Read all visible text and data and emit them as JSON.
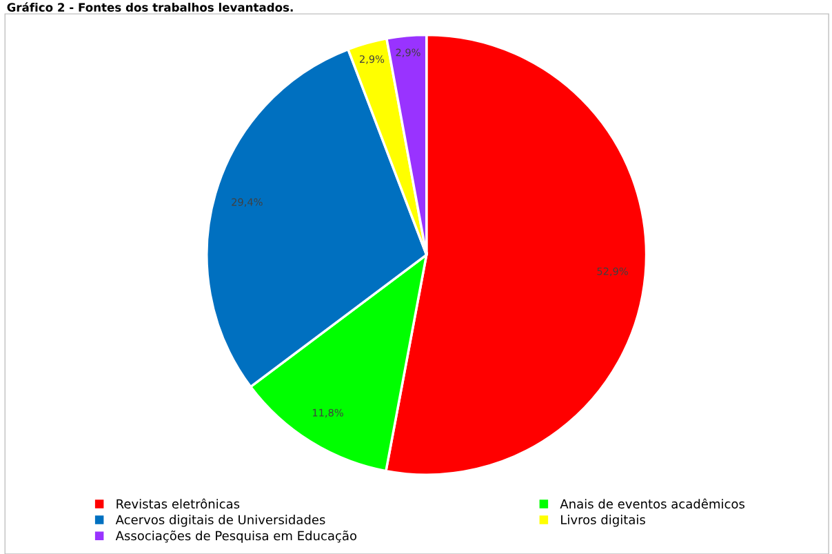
{
  "chart_data": {
    "type": "pie",
    "title": "Gráfico 2 - Fontes dos trabalhos levantados.",
    "categories": [
      "Revistas eletrônicas",
      "Anais de eventos acadêmicos",
      "Acervos digitais de Universidades",
      "Livros digitais",
      "Associações de Pesquisa em Educação"
    ],
    "values": [
      52.9,
      11.8,
      29.4,
      2.9,
      2.9
    ],
    "colors": [
      "#ff0000",
      "#00ff00",
      "#0070c0",
      "#ffff00",
      "#9933ff"
    ],
    "value_labels": [
      "52,9%",
      "11,8%",
      "29,4%",
      "2,9%",
      "2,9%"
    ],
    "legend": "bottom"
  }
}
